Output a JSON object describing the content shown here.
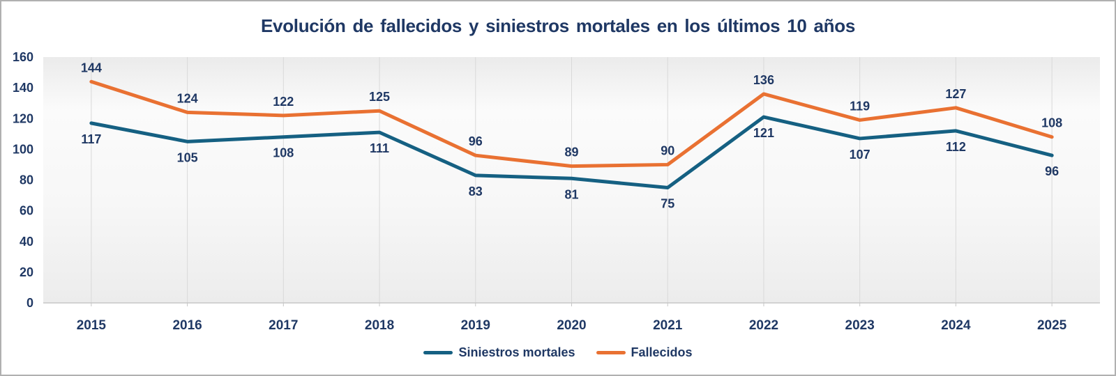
{
  "title": "Evolución de fallecidos y siniestros mortales en los últimos 10 años",
  "colors": {
    "title_text": "#1F3864",
    "axis_text": "#1F3864",
    "data_label_text": "#1F3864",
    "gridline": "#D9D9D9",
    "axis_line": "#C6C6C6",
    "frame_border": "#B0B0B0",
    "plot_bg_stops": [
      "#EBEBEB",
      "#FBFBFB",
      "#F7F7F7",
      "#ECECEC"
    ],
    "series_siniestros": "#156082",
    "series_fallecidos": "#E97132"
  },
  "chart_data": {
    "type": "line",
    "title": "Evolución de fallecidos y siniestros mortales en los últimos 10 años",
    "categories": [
      "2015",
      "2016",
      "2017",
      "2018",
      "2019",
      "2020",
      "2021",
      "2022",
      "2023",
      "2024",
      "2025"
    ],
    "series": [
      {
        "name": "Siniestros mortales",
        "color": "#156082",
        "values": [
          117,
          105,
          108,
          111,
          83,
          81,
          75,
          121,
          107,
          112,
          96
        ],
        "label_position": "below"
      },
      {
        "name": "Fallecidos",
        "color": "#E97132",
        "values": [
          144,
          124,
          122,
          125,
          96,
          89,
          90,
          136,
          119,
          127,
          108
        ],
        "label_position": "above"
      }
    ],
    "xlabel": "",
    "ylabel": "",
    "ylim": [
      0,
      160
    ],
    "ytick_step": 20,
    "yticks": [
      0,
      20,
      40,
      60,
      80,
      100,
      120,
      140,
      160
    ],
    "grid": "vertical",
    "data_labels": true,
    "legend_position": "bottom"
  }
}
